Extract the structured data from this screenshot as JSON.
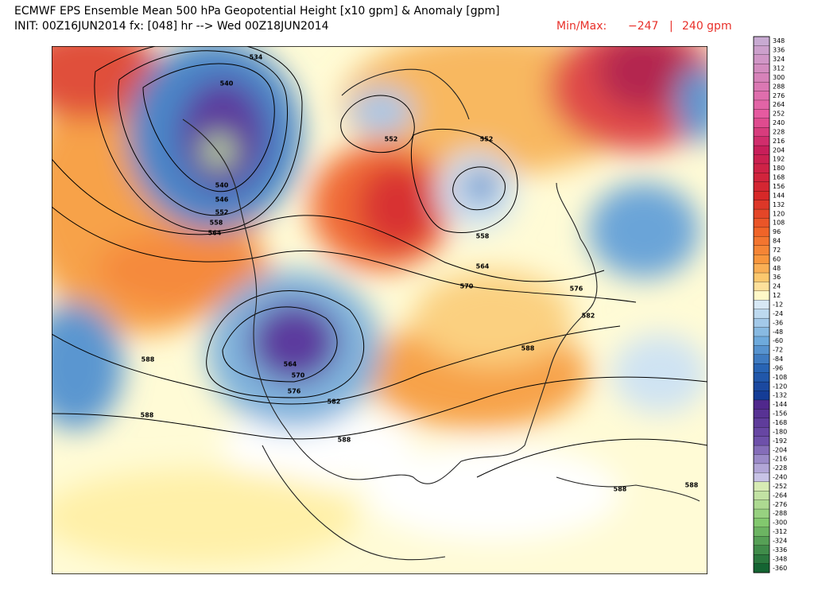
{
  "header": {
    "title": "ECMWF EPS Ensemble Mean 500 hPa Geopotential Height [x10 gpm] & Anomaly [gpm]",
    "init": "INIT: 00Z16JUN2014 fx: [048] hr --> Wed 00Z18JUN2014",
    "minmax_label": "Min/Max:",
    "min": "−247",
    "separator": "|",
    "max": "240 gpm"
  },
  "colorbar": {
    "labels": [
      348,
      336,
      324,
      312,
      300,
      288,
      276,
      264,
      252,
      240,
      228,
      216,
      204,
      192,
      180,
      168,
      156,
      144,
      132,
      120,
      108,
      96,
      84,
      72,
      60,
      48,
      36,
      24,
      12,
      -12,
      -24,
      -36,
      -48,
      -60,
      -72,
      -84,
      -96,
      -108,
      -120,
      -132,
      -144,
      -156,
      -168,
      -180,
      -192,
      -204,
      -216,
      -228,
      -240,
      -252,
      -264,
      -276,
      -288,
      -300,
      -312,
      -324,
      -336,
      -348,
      -360
    ]
  },
  "contour_labels": [
    534,
    540,
    540,
    546,
    552,
    558,
    564,
    552,
    552,
    558,
    564,
    570,
    576,
    582,
    588,
    564,
    570,
    576,
    582,
    588,
    588,
    588,
    588,
    588
  ]
}
